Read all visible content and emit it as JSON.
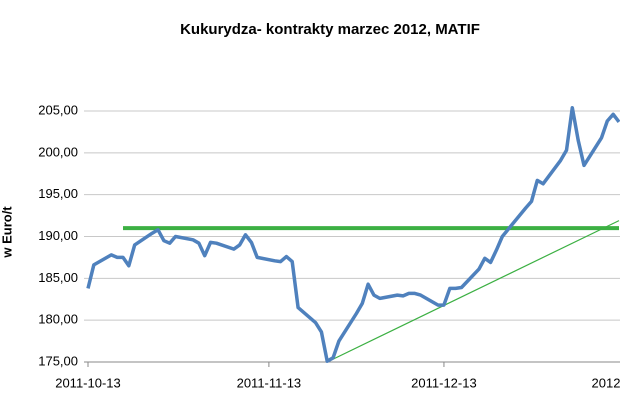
{
  "chart_data": {
    "type": "line",
    "title": "Kukurydza- kontrakty marzec 2012, MATIF",
    "y_label": "w Euro/t",
    "x": [
      "2011-10-13",
      "2011-10-14",
      "2011-10-17",
      "2011-10-18",
      "2011-10-19",
      "2011-10-20",
      "2011-10-21",
      "2011-10-24",
      "2011-10-25",
      "2011-10-26",
      "2011-10-27",
      "2011-10-28",
      "2011-10-31",
      "2011-11-01",
      "2011-11-02",
      "2011-11-03",
      "2011-11-04",
      "2011-11-07",
      "2011-11-08",
      "2011-11-09",
      "2011-11-10",
      "2011-11-11",
      "2011-11-14",
      "2011-11-15",
      "2011-11-16",
      "2011-11-17",
      "2011-11-18",
      "2011-11-21",
      "2011-11-22",
      "2011-11-23",
      "2011-11-24",
      "2011-11-25",
      "2011-11-28",
      "2011-11-29",
      "2011-11-30",
      "2011-12-01",
      "2011-12-02",
      "2011-12-05",
      "2011-12-06",
      "2011-12-07",
      "2011-12-08",
      "2011-12-09",
      "2011-12-12",
      "2011-12-13",
      "2011-12-14",
      "2011-12-15",
      "2011-12-16",
      "2011-12-19",
      "2011-12-20",
      "2011-12-21",
      "2011-12-22",
      "2011-12-23",
      "2011-12-27",
      "2011-12-28",
      "2011-12-29",
      "2011-12-30",
      "2012-01-02",
      "2012-01-03",
      "2012-01-04",
      "2012-01-05",
      "2012-01-06",
      "2012-01-09",
      "2012-01-10",
      "2012-01-11",
      "2012-01-12"
    ],
    "series": [
      {
        "color": "#4f81bd",
        "values": [
          183.8,
          186.6,
          187.8,
          187.5,
          187.5,
          186.5,
          189,
          190.4,
          190.8,
          189.5,
          189.2,
          190,
          189.6,
          189.2,
          187.7,
          189.3,
          189.2,
          188.5,
          189,
          190.2,
          189.3,
          187.5,
          187.1,
          187,
          187.6,
          187,
          181.5,
          179.7,
          178.6,
          175.1,
          175.5,
          177.5,
          180.8,
          182,
          184.3,
          183,
          182.6,
          183,
          182.9,
          183.2,
          183.2,
          183,
          181.8,
          181.8,
          183.8,
          183.8,
          183.9,
          186.1,
          187.4,
          186.9,
          188.4,
          190,
          193.4,
          194.2,
          196.7,
          196.3,
          199.1,
          200.3,
          205.4,
          201.5,
          198.5,
          201.8,
          203.8,
          204.6,
          203.7
        ]
      }
    ],
    "trend_lines": [
      {
        "x": [
          "2011-10-19",
          "2012-01-12"
        ],
        "values": [
          191,
          191
        ],
        "color": "#3cb043",
        "width": 4
      },
      {
        "x": [
          "2011-11-23",
          "2012-01-12"
        ],
        "values": [
          175,
          191.9
        ],
        "color": "#3cb043",
        "width": 1.2
      }
    ],
    "xlim": [
      "2011-10-13",
      "2012-01-12"
    ],
    "xticks": [
      "2011-10-13",
      "2011-11-13",
      "2011-12-13",
      {
        "value": "2012-01-13",
        "label": "2012"
      }
    ],
    "ylim": [
      175,
      205
    ],
    "yticks": [
      {
        "value": 175,
        "label": "175,00"
      },
      {
        "value": 180,
        "label": "180,00"
      },
      {
        "value": 185,
        "label": "185,00"
      },
      {
        "value": 190,
        "label": "190,00"
      },
      {
        "value": 195,
        "label": "195,00"
      },
      {
        "value": 200,
        "label": "200,00"
      },
      {
        "value": 205,
        "label": "205,00"
      }
    ],
    "grid": true
  }
}
